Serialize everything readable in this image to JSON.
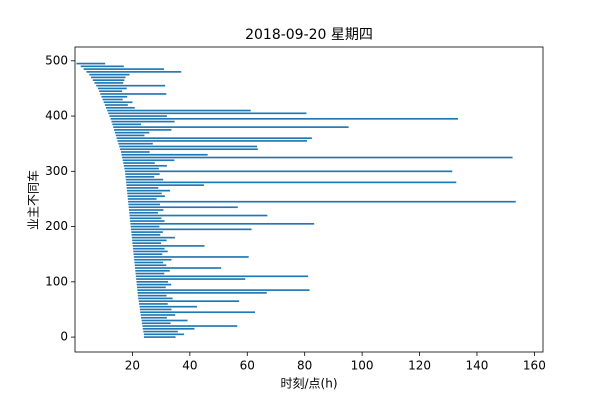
{
  "chart_data": {
    "type": "barh",
    "title": "2018-09-20 星期四",
    "xlabel": "时刻/点(h)",
    "ylabel": "业主不同车",
    "color": "#1f77b4",
    "y": [
      0,
      5,
      10,
      15,
      20,
      25,
      30,
      35,
      40,
      45,
      50,
      55,
      60,
      65,
      70,
      75,
      80,
      85,
      90,
      95,
      100,
      105,
      110,
      115,
      120,
      125,
      130,
      135,
      140,
      145,
      150,
      155,
      160,
      165,
      170,
      175,
      180,
      185,
      190,
      195,
      200,
      205,
      210,
      215,
      220,
      225,
      230,
      235,
      240,
      245,
      250,
      255,
      260,
      265,
      270,
      275,
      280,
      285,
      290,
      295,
      300,
      305,
      310,
      315,
      320,
      325,
      330,
      335,
      340,
      345,
      350,
      355,
      360,
      365,
      370,
      375,
      380,
      385,
      390,
      395,
      400,
      405,
      410,
      415,
      420,
      425,
      430,
      435,
      440,
      445,
      450,
      455,
      460,
      465,
      470,
      475,
      480,
      485,
      490,
      495
    ],
    "start": [
      24,
      24,
      23.8,
      23.6,
      23.5,
      23.3,
      23.2,
      23,
      22.9,
      22.7,
      22.6,
      22.5,
      22.3,
      22.2,
      22,
      21.9,
      21.8,
      21.7,
      21.6,
      21.5,
      21.4,
      21.3,
      21.2,
      21.1,
      21,
      20.9,
      20.8,
      20.7,
      20.6,
      20.5,
      20.4,
      20.3,
      20.2,
      20.1,
      20,
      19.9,
      19.8,
      19.7,
      19.6,
      19.5,
      19.4,
      19.3,
      19.2,
      19.1,
      19,
      18.9,
      18.8,
      18.7,
      18.6,
      18.5,
      18.4,
      18.3,
      18.2,
      18.1,
      18,
      17.9,
      17.8,
      17.7,
      17.6,
      17.5,
      17.4,
      17.2,
      17,
      16.8,
      16.6,
      16.4,
      16.2,
      16,
      15.7,
      15.4,
      15.1,
      14.8,
      14.5,
      14.2,
      13.9,
      13.6,
      13.3,
      13,
      12.7,
      12.4,
      12,
      11.6,
      11.2,
      10.8,
      10.4,
      10,
      9.6,
      9.2,
      8.8,
      8.4,
      8,
      7.4,
      6.8,
      6.2,
      5.6,
      5,
      4,
      3,
      2,
      0.5
    ],
    "values": [
      11,
      14,
      12,
      18,
      33,
      10,
      16,
      9,
      12,
      40,
      11,
      20,
      10,
      35,
      12,
      10,
      45,
      60,
      10,
      12,
      11,
      38,
      60,
      10,
      12,
      30,
      11,
      10,
      13,
      40,
      10,
      12,
      11,
      25,
      10,
      12,
      15,
      10,
      11,
      42,
      10,
      64,
      12,
      11,
      48,
      10,
      12,
      38,
      11,
      135,
      10,
      13,
      12,
      15,
      11,
      27,
      115,
      13,
      10,
      12,
      114,
      12,
      15,
      11,
      18,
      136,
      30,
      10,
      48,
      48,
      12,
      66,
      68,
      10,
      12,
      20,
      82,
      10,
      22,
      121,
      20,
      69,
      50,
      10,
      8,
      10,
      7,
      9,
      23,
      8,
      10,
      24,
      10,
      11,
      12,
      14,
      33,
      28,
      15,
      10
    ],
    "xlim": [
      0,
      163
    ],
    "ylim": [
      -27,
      525
    ],
    "xticks": [
      20,
      40,
      60,
      80,
      100,
      120,
      140,
      160
    ],
    "yticks": [
      0,
      100,
      200,
      300,
      400,
      500
    ]
  }
}
